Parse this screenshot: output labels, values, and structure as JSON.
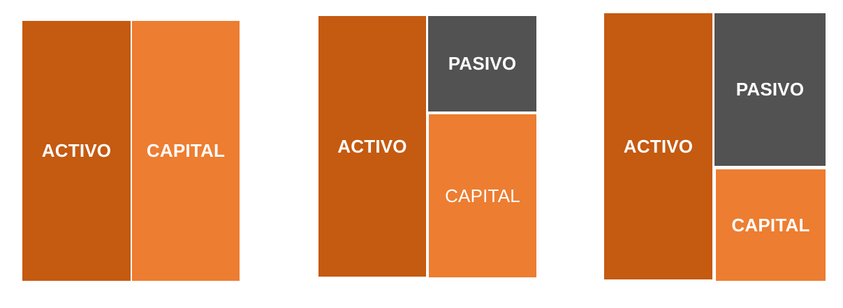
{
  "colors": {
    "activo": "#C55A11",
    "capital": "#ED7D31",
    "pasivo": "#525252",
    "text": "#FFFFFF"
  },
  "diagrams": [
    {
      "activo": "ACTIVO",
      "capital": "CAPITAL"
    },
    {
      "activo": "ACTIVO",
      "pasivo": "PASIVO",
      "capital": "CAPITAL"
    },
    {
      "activo": "ACTIVO",
      "pasivo": "PASIVO",
      "capital": "CAPITAL"
    }
  ]
}
